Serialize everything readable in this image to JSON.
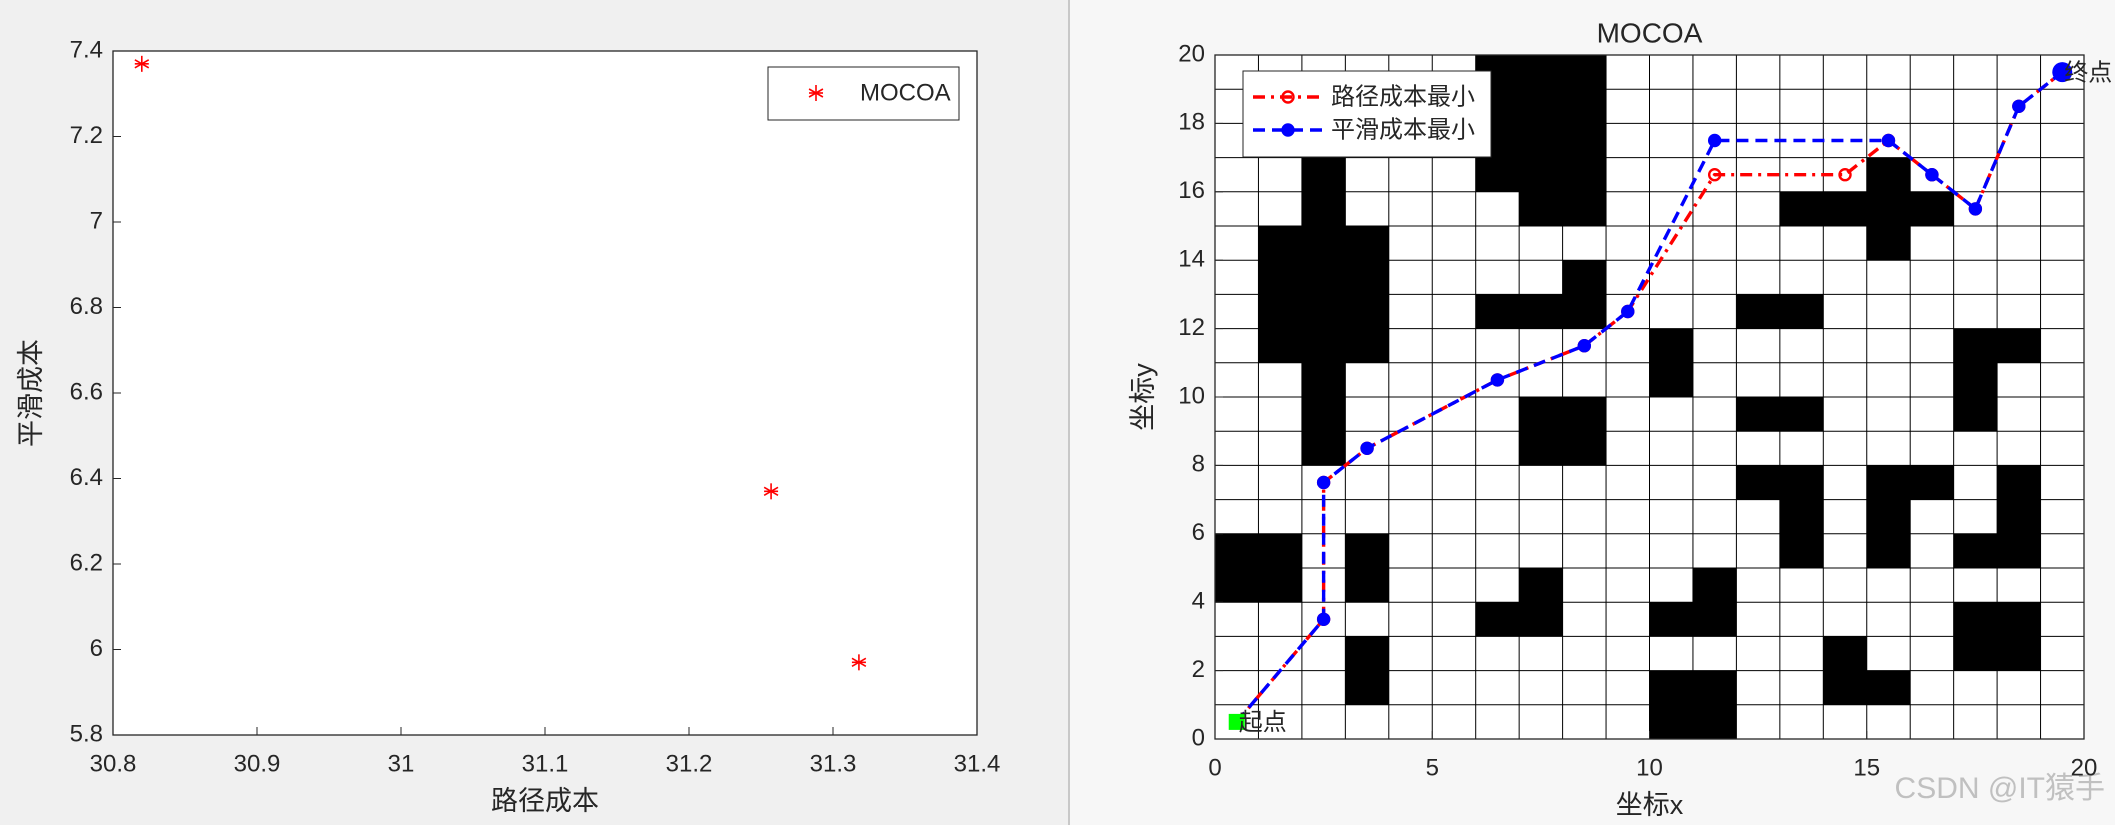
{
  "chart_data": [
    {
      "type": "scatter",
      "x_label": "路径成本",
      "y_label": "平滑成本",
      "series": [
        {
          "name": "MOCOA",
          "color": "#ff0000",
          "x": [
            30.82,
            31.257,
            31.318
          ],
          "values": [
            7.37,
            6.37,
            5.97
          ]
        }
      ],
      "xlim": [
        30.8,
        31.4
      ],
      "xticks": [
        30.8,
        30.9,
        31,
        31.1,
        31.2,
        31.3,
        31.4
      ],
      "ylim": [
        5.8,
        7.4
      ],
      "yticks": [
        5.8,
        6,
        6.2,
        6.4,
        6.6,
        6.8,
        7,
        7.2,
        7.4
      ],
      "legend": "upper right"
    },
    {
      "type": "line",
      "title": "MOCOA",
      "x_label": "坐标x",
      "y_label": "坐标y",
      "series": [
        {
          "name": "路径成本最小",
          "color": "#ff0000",
          "linestyle": "dashdot",
          "marker": "open-circle",
          "x": [
            0.5,
            2.5,
            2.5,
            3.5,
            6.5,
            8.5,
            9.5,
            11.5,
            14.5,
            15.5,
            16.5,
            17.5,
            18.5,
            19.5
          ],
          "values": [
            0.5,
            3.5,
            7.5,
            8.5,
            10.5,
            11.5,
            12.5,
            16.5,
            16.5,
            17.5,
            16.5,
            15.5,
            18.5,
            19.5
          ]
        },
        {
          "name": "平滑成本最小",
          "color": "#0000ff",
          "linestyle": "dashed",
          "marker": "filled-circle",
          "x": [
            0.5,
            2.5,
            2.5,
            3.5,
            6.5,
            8.5,
            9.5,
            11.5,
            15.5,
            16.5,
            17.5,
            18.5,
            19.5
          ],
          "values": [
            0.5,
            3.5,
            7.5,
            8.5,
            10.5,
            11.5,
            12.5,
            17.5,
            17.5,
            16.5,
            15.5,
            18.5,
            19.5
          ]
        }
      ],
      "start": {
        "x": 0.5,
        "y": 0.5,
        "label": "起点",
        "color": "#00ff00"
      },
      "end": {
        "x": 19.5,
        "y": 19.5,
        "label": "终点",
        "color": "#0000ff"
      },
      "obstacles": [
        [
          6,
          16,
          3,
          4
        ],
        [
          7,
          15,
          2,
          1
        ],
        [
          2,
          8,
          1,
          10
        ],
        [
          1,
          11,
          3,
          4
        ],
        [
          0,
          4,
          2,
          2
        ],
        [
          3,
          4,
          1,
          2
        ],
        [
          3,
          1,
          1,
          2
        ],
        [
          6,
          12,
          3,
          1
        ],
        [
          8,
          13,
          1,
          1
        ],
        [
          7,
          8,
          2,
          2
        ],
        [
          7,
          4,
          1,
          1
        ],
        [
          6,
          3,
          2,
          1
        ],
        [
          10,
          10,
          1,
          2
        ],
        [
          11,
          4,
          1,
          1
        ],
        [
          10,
          3,
          2,
          1
        ],
        [
          10,
          0,
          2,
          2
        ],
        [
          12,
          12,
          2,
          1
        ],
        [
          12,
          9,
          2,
          1
        ],
        [
          12,
          7,
          2,
          1
        ],
        [
          13,
          5,
          1,
          2
        ],
        [
          13,
          15,
          4,
          1
        ],
        [
          15,
          14,
          1,
          1
        ],
        [
          15,
          16,
          1,
          1
        ],
        [
          15,
          5,
          1,
          3
        ],
        [
          16,
          7,
          1,
          1
        ],
        [
          17,
          9,
          1,
          3
        ],
        [
          18,
          11,
          1,
          1
        ],
        [
          18,
          5,
          1,
          3
        ],
        [
          17,
          5,
          1,
          1
        ],
        [
          17,
          2,
          2,
          2
        ],
        [
          14,
          1,
          1,
          2
        ],
        [
          15,
          1,
          1,
          1
        ]
      ],
      "xlim": [
        0,
        20
      ],
      "xticks": [
        0,
        5,
        10,
        15,
        20
      ],
      "ylim": [
        0,
        20
      ],
      "yticks": [
        0,
        2,
        4,
        6,
        8,
        10,
        12,
        14,
        16,
        18,
        20
      ],
      "grid": true,
      "legend": "upper left"
    }
  ],
  "watermark": "CSDN @IT猿手"
}
